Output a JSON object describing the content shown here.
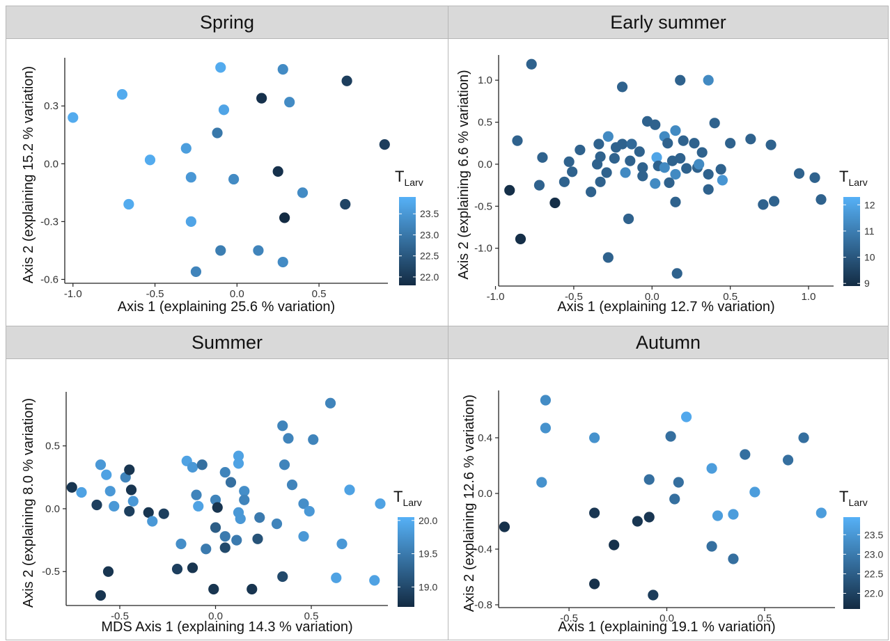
{
  "chart_data": [
    {
      "type": "scatter",
      "title": "Spring",
      "xlabel": "Axis 1 (explaining 25.6 % variation)",
      "ylabel": "Axis 2 (explaining 15.2 % variation)",
      "xlim": [
        -1.05,
        0.92
      ],
      "ylim": [
        -0.62,
        0.55
      ],
      "xticks": [
        -1.0,
        -0.5,
        0.0,
        0.5
      ],
      "yticks": [
        -0.6,
        -0.3,
        0.0,
        0.3
      ],
      "x_tick_labels": [
        "-1.0",
        "-0.5",
        "0.0",
        "0.5"
      ],
      "y_tick_labels": [
        "-0.6",
        "-0.3",
        "0.0",
        "0.3"
      ],
      "legend": {
        "title": "T",
        "title_sub": "Larv",
        "range": [
          21.8,
          23.9
        ],
        "ticks": [
          22.0,
          22.5,
          23.0,
          23.5
        ],
        "tick_labels": [
          "22.0",
          "22.5",
          "23.0",
          "23.5"
        ],
        "placement": "right"
      },
      "points": [
        {
          "x": -1.0,
          "y": 0.24,
          "t": 23.8
        },
        {
          "x": -0.7,
          "y": 0.36,
          "t": 23.8
        },
        {
          "x": -0.66,
          "y": -0.21,
          "t": 23.8
        },
        {
          "x": -0.53,
          "y": 0.02,
          "t": 23.8
        },
        {
          "x": -0.31,
          "y": 0.08,
          "t": 23.6
        },
        {
          "x": -0.28,
          "y": -0.07,
          "t": 23.5
        },
        {
          "x": -0.28,
          "y": -0.3,
          "t": 23.7
        },
        {
          "x": -0.25,
          "y": -0.56,
          "t": 23.2
        },
        {
          "x": -0.12,
          "y": 0.16,
          "t": 23.0
        },
        {
          "x": -0.1,
          "y": 0.5,
          "t": 23.8
        },
        {
          "x": -0.1,
          "y": -0.45,
          "t": 23.1
        },
        {
          "x": -0.08,
          "y": 0.28,
          "t": 23.7
        },
        {
          "x": -0.02,
          "y": -0.08,
          "t": 23.3
        },
        {
          "x": 0.13,
          "y": -0.45,
          "t": 23.2
        },
        {
          "x": 0.15,
          "y": 0.34,
          "t": 21.9
        },
        {
          "x": 0.25,
          "y": -0.04,
          "t": 21.9
        },
        {
          "x": 0.28,
          "y": 0.49,
          "t": 23.3
        },
        {
          "x": 0.28,
          "y": -0.51,
          "t": 23.3
        },
        {
          "x": 0.29,
          "y": -0.28,
          "t": 21.8
        },
        {
          "x": 0.32,
          "y": 0.32,
          "t": 23.3
        },
        {
          "x": 0.4,
          "y": -0.15,
          "t": 23.3
        },
        {
          "x": 0.67,
          "y": 0.43,
          "t": 22.1
        },
        {
          "x": 0.66,
          "y": -0.21,
          "t": 22.2
        },
        {
          "x": 0.9,
          "y": 0.1,
          "t": 22.1
        }
      ]
    },
    {
      "type": "scatter",
      "title": "Early summer",
      "xlabel": "Axis 1 (explaining 12.7 % variation)",
      "ylabel": "Axis 2 (explaining 6.6 % variation)",
      "xlim": [
        -0.98,
        1.16
      ],
      "ylim": [
        -1.45,
        1.3
      ],
      "xticks": [
        -1.0,
        -0.5,
        0.0,
        0.5,
        1.0
      ],
      "yticks": [
        -1.0,
        -0.5,
        0.0,
        0.5,
        1.0
      ],
      "x_tick_labels": [
        "-1.0",
        "-0.5",
        "0.0",
        "0.5",
        "1.0"
      ],
      "y_tick_labels": [
        "-1.0",
        "-0.5",
        "0.0",
        "0.5",
        "1.0"
      ],
      "legend": {
        "title": "T",
        "title_sub": "Larv",
        "range": [
          8.9,
          12.3
        ],
        "ticks": [
          9,
          10,
          11,
          12
        ],
        "tick_labels": [
          "9",
          "10",
          "11",
          "12"
        ],
        "placement": "right"
      },
      "points": [
        {
          "x": -0.77,
          "y": 1.19,
          "t": 10.3
        },
        {
          "x": -0.19,
          "y": 0.92,
          "t": 10.3
        },
        {
          "x": 0.18,
          "y": 1.0,
          "t": 10.3
        },
        {
          "x": 0.36,
          "y": 1.0,
          "t": 11.3
        },
        {
          "x": -0.86,
          "y": 0.28,
          "t": 10.3
        },
        {
          "x": -0.91,
          "y": -0.31,
          "t": 9.0
        },
        {
          "x": -0.84,
          "y": -0.89,
          "t": 9.0
        },
        {
          "x": -0.7,
          "y": 0.08,
          "t": 10.3
        },
        {
          "x": -0.72,
          "y": -0.25,
          "t": 10.3
        },
        {
          "x": -0.62,
          "y": -0.46,
          "t": 9.0
        },
        {
          "x": -0.56,
          "y": -0.21,
          "t": 10.3
        },
        {
          "x": -0.53,
          "y": 0.03,
          "t": 10.3
        },
        {
          "x": -0.51,
          "y": -0.09,
          "t": 10.3
        },
        {
          "x": -0.46,
          "y": 0.17,
          "t": 10.3
        },
        {
          "x": -0.39,
          "y": -0.33,
          "t": 10.3
        },
        {
          "x": -0.35,
          "y": 0.0,
          "t": 10.3
        },
        {
          "x": -0.34,
          "y": 0.24,
          "t": 10.3
        },
        {
          "x": -0.33,
          "y": -0.21,
          "t": 10.3
        },
        {
          "x": -0.33,
          "y": 0.09,
          "t": 10.3
        },
        {
          "x": -0.29,
          "y": -0.1,
          "t": 10.3
        },
        {
          "x": -0.28,
          "y": 0.33,
          "t": 11.3
        },
        {
          "x": -0.28,
          "y": -1.11,
          "t": 10.3
        },
        {
          "x": -0.24,
          "y": 0.07,
          "t": 10.3
        },
        {
          "x": -0.23,
          "y": 0.2,
          "t": 10.3
        },
        {
          "x": -0.19,
          "y": 0.24,
          "t": 10.3
        },
        {
          "x": -0.17,
          "y": -0.1,
          "t": 11.3
        },
        {
          "x": -0.15,
          "y": -0.65,
          "t": 10.3
        },
        {
          "x": -0.13,
          "y": 0.24,
          "t": 10.5
        },
        {
          "x": -0.14,
          "y": 0.04,
          "t": 10.3
        },
        {
          "x": -0.06,
          "y": -0.04,
          "t": 10.3
        },
        {
          "x": -0.08,
          "y": 0.15,
          "t": 10.3
        },
        {
          "x": -0.06,
          "y": -0.14,
          "t": 10.3
        },
        {
          "x": -0.03,
          "y": 0.51,
          "t": 10.3
        },
        {
          "x": 0.02,
          "y": 0.47,
          "t": 10.3
        },
        {
          "x": 0.02,
          "y": -0.23,
          "t": 11.3
        },
        {
          "x": 0.03,
          "y": 0.08,
          "t": 12.0
        },
        {
          "x": 0.04,
          "y": -0.02,
          "t": 10.3
        },
        {
          "x": 0.08,
          "y": 0.33,
          "t": 11.3
        },
        {
          "x": 0.08,
          "y": -0.04,
          "t": 11.3
        },
        {
          "x": 0.1,
          "y": 0.25,
          "t": 10.3
        },
        {
          "x": 0.11,
          "y": -0.22,
          "t": 10.3
        },
        {
          "x": 0.13,
          "y": 0.04,
          "t": 10.3
        },
        {
          "x": 0.15,
          "y": 0.4,
          "t": 11.3
        },
        {
          "x": 0.15,
          "y": -0.12,
          "t": 11.3
        },
        {
          "x": 0.15,
          "y": -0.45,
          "t": 10.3
        },
        {
          "x": 0.16,
          "y": -1.3,
          "t": 10.3
        },
        {
          "x": 0.18,
          "y": 0.07,
          "t": 10.3
        },
        {
          "x": 0.2,
          "y": 0.28,
          "t": 10.3
        },
        {
          "x": 0.22,
          "y": -0.05,
          "t": 10.3
        },
        {
          "x": 0.27,
          "y": 0.25,
          "t": 10.3
        },
        {
          "x": 0.29,
          "y": -0.04,
          "t": 10.3
        },
        {
          "x": 0.3,
          "y": 0.0,
          "t": 11.3
        },
        {
          "x": 0.32,
          "y": 0.14,
          "t": 10.3
        },
        {
          "x": 0.36,
          "y": -0.12,
          "t": 10.3
        },
        {
          "x": 0.36,
          "y": -0.3,
          "t": 10.3
        },
        {
          "x": 0.4,
          "y": 0.49,
          "t": 10.3
        },
        {
          "x": 0.44,
          "y": -0.06,
          "t": 10.3
        },
        {
          "x": 0.45,
          "y": -0.19,
          "t": 11.6
        },
        {
          "x": 0.5,
          "y": 0.25,
          "t": 10.3
        },
        {
          "x": 0.63,
          "y": 0.3,
          "t": 10.3
        },
        {
          "x": 0.71,
          "y": -0.48,
          "t": 10.3
        },
        {
          "x": 0.76,
          "y": 0.23,
          "t": 10.3
        },
        {
          "x": 0.78,
          "y": -0.44,
          "t": 10.3
        },
        {
          "x": 0.94,
          "y": -0.11,
          "t": 10.3
        },
        {
          "x": 1.04,
          "y": -0.16,
          "t": 10.3
        },
        {
          "x": 1.08,
          "y": -0.42,
          "t": 10.3
        }
      ]
    },
    {
      "type": "scatter",
      "title": "Summer",
      "xlabel": "MDS Axis 1 (explaining 14.3 % variation)",
      "ylabel": "Axis 2 (explaining 8.0 % variation)",
      "xlim": [
        -0.78,
        0.9
      ],
      "ylim": [
        -0.77,
        0.93
      ],
      "xticks": [
        -0.5,
        0.0,
        0.5
      ],
      "yticks": [
        -0.5,
        0.0,
        0.5
      ],
      "x_tick_labels": [
        "-0.5",
        "0.0",
        "0.5"
      ],
      "y_tick_labels": [
        "-0.5",
        "0.0",
        "0.5"
      ],
      "legend": {
        "title": "T",
        "title_sub": "Larv",
        "range": [
          18.7,
          20.05
        ],
        "ticks": [
          19.0,
          19.5,
          20.0
        ],
        "tick_labels": [
          "19.0",
          "19.5",
          "20.0"
        ],
        "placement": "right"
      },
      "points": [
        {
          "x": -0.75,
          "y": 0.17,
          "t": 18.8
        },
        {
          "x": -0.7,
          "y": 0.13,
          "t": 19.9
        },
        {
          "x": -0.62,
          "y": 0.03,
          "t": 18.9
        },
        {
          "x": -0.6,
          "y": 0.35,
          "t": 19.8
        },
        {
          "x": -0.57,
          "y": 0.27,
          "t": 19.9
        },
        {
          "x": -0.55,
          "y": 0.14,
          "t": 19.8
        },
        {
          "x": -0.53,
          "y": 0.02,
          "t": 19.8
        },
        {
          "x": -0.47,
          "y": 0.25,
          "t": 19.6
        },
        {
          "x": -0.45,
          "y": 0.31,
          "t": 18.8
        },
        {
          "x": -0.44,
          "y": 0.15,
          "t": 18.8
        },
        {
          "x": -0.43,
          "y": 0.06,
          "t": 19.8
        },
        {
          "x": -0.45,
          "y": -0.02,
          "t": 18.9
        },
        {
          "x": -0.35,
          "y": -0.03,
          "t": 18.8
        },
        {
          "x": -0.33,
          "y": -0.1,
          "t": 19.8
        },
        {
          "x": -0.27,
          "y": -0.04,
          "t": 18.9
        },
        {
          "x": -0.2,
          "y": -0.48,
          "t": 18.9
        },
        {
          "x": -0.18,
          "y": -0.28,
          "t": 19.7
        },
        {
          "x": -0.15,
          "y": 0.38,
          "t": 19.9
        },
        {
          "x": -0.12,
          "y": 0.33,
          "t": 19.8
        },
        {
          "x": -0.12,
          "y": -0.47,
          "t": 18.8
        },
        {
          "x": -0.1,
          "y": 0.11,
          "t": 19.6
        },
        {
          "x": -0.09,
          "y": 0.02,
          "t": 19.9
        },
        {
          "x": -0.07,
          "y": 0.35,
          "t": 19.4
        },
        {
          "x": -0.05,
          "y": -0.32,
          "t": 19.5
        },
        {
          "x": -0.01,
          "y": -0.64,
          "t": 18.8
        },
        {
          "x": 0.0,
          "y": -0.15,
          "t": 19.2
        },
        {
          "x": 0.0,
          "y": 0.07,
          "t": 19.6
        },
        {
          "x": 0.01,
          "y": 0.01,
          "t": 18.8
        },
        {
          "x": 0.05,
          "y": 0.29,
          "t": 19.6
        },
        {
          "x": 0.05,
          "y": -0.22,
          "t": 19.5
        },
        {
          "x": 0.05,
          "y": -0.31,
          "t": 19.0
        },
        {
          "x": 0.08,
          "y": 0.21,
          "t": 19.4
        },
        {
          "x": 0.11,
          "y": -0.25,
          "t": 19.5
        },
        {
          "x": 0.12,
          "y": 0.42,
          "t": 19.9
        },
        {
          "x": 0.12,
          "y": 0.36,
          "t": 19.9
        },
        {
          "x": 0.12,
          "y": -0.03,
          "t": 19.8
        },
        {
          "x": 0.13,
          "y": -0.08,
          "t": 19.8
        },
        {
          "x": 0.15,
          "y": 0.14,
          "t": 19.7
        },
        {
          "x": 0.15,
          "y": 0.07,
          "t": 19.6
        },
        {
          "x": 0.19,
          "y": -0.64,
          "t": 18.8
        },
        {
          "x": 0.22,
          "y": -0.24,
          "t": 19.1
        },
        {
          "x": 0.23,
          "y": -0.07,
          "t": 19.5
        },
        {
          "x": 0.32,
          "y": -0.12,
          "t": 19.6
        },
        {
          "x": 0.35,
          "y": 0.66,
          "t": 19.6
        },
        {
          "x": 0.36,
          "y": 0.35,
          "t": 19.6
        },
        {
          "x": 0.35,
          "y": -0.54,
          "t": 19.0
        },
        {
          "x": 0.38,
          "y": 0.56,
          "t": 19.6
        },
        {
          "x": 0.4,
          "y": 0.19,
          "t": 19.6
        },
        {
          "x": 0.46,
          "y": 0.04,
          "t": 19.7
        },
        {
          "x": 0.46,
          "y": -0.22,
          "t": 19.8
        },
        {
          "x": 0.49,
          "y": -0.02,
          "t": 19.8
        },
        {
          "x": 0.51,
          "y": 0.55,
          "t": 19.6
        },
        {
          "x": 0.6,
          "y": 0.84,
          "t": 19.6
        },
        {
          "x": 0.63,
          "y": -0.55,
          "t": 19.9
        },
        {
          "x": 0.66,
          "y": -0.28,
          "t": 19.8
        },
        {
          "x": 0.7,
          "y": 0.15,
          "t": 19.9
        },
        {
          "x": 0.83,
          "y": -0.57,
          "t": 19.9
        },
        {
          "x": 0.86,
          "y": 0.04,
          "t": 19.9
        },
        {
          "x": -0.6,
          "y": -0.69,
          "t": 18.8
        },
        {
          "x": -0.56,
          "y": -0.5,
          "t": 18.8
        }
      ]
    },
    {
      "type": "scatter",
      "title": "Autumn",
      "xlabel": "Axis 1 (explaining 19.1 % variation)",
      "ylabel": "Axis 2 (explaining 12.6 % variation)",
      "xlim": [
        -0.86,
        0.86
      ],
      "ylim": [
        -0.82,
        0.74
      ],
      "xticks": [
        -0.5,
        0.0,
        0.5
      ],
      "yticks": [
        -0.8,
        -0.4,
        0.0,
        0.4
      ],
      "x_tick_labels": [
        "-0.5",
        "0.0",
        "0.5"
      ],
      "y_tick_labels": [
        "-0.8",
        "-0.4",
        "0.0",
        "0.4"
      ],
      "legend": {
        "title": "T",
        "title_sub": "Larv",
        "range": [
          21.6,
          23.95
        ],
        "ticks": [
          22.0,
          22.5,
          23.0,
          23.5
        ],
        "tick_labels": [
          "22.0",
          "22.5",
          "23.0",
          "23.5"
        ],
        "placement": "right"
      },
      "points": [
        {
          "x": -0.83,
          "y": -0.24,
          "t": 21.7
        },
        {
          "x": -0.62,
          "y": 0.67,
          "t": 23.3
        },
        {
          "x": -0.62,
          "y": 0.47,
          "t": 23.4
        },
        {
          "x": -0.64,
          "y": 0.08,
          "t": 23.4
        },
        {
          "x": -0.37,
          "y": 0.4,
          "t": 23.4
        },
        {
          "x": -0.37,
          "y": -0.14,
          "t": 21.8
        },
        {
          "x": -0.37,
          "y": -0.65,
          "t": 21.7
        },
        {
          "x": -0.27,
          "y": -0.37,
          "t": 21.7
        },
        {
          "x": -0.15,
          "y": -0.2,
          "t": 21.8
        },
        {
          "x": -0.09,
          "y": 0.1,
          "t": 22.8
        },
        {
          "x": -0.09,
          "y": -0.17,
          "t": 21.8
        },
        {
          "x": -0.07,
          "y": -0.73,
          "t": 21.9
        },
        {
          "x": 0.02,
          "y": 0.41,
          "t": 22.8
        },
        {
          "x": 0.04,
          "y": -0.04,
          "t": 22.8
        },
        {
          "x": 0.06,
          "y": 0.08,
          "t": 22.8
        },
        {
          "x": 0.1,
          "y": 0.55,
          "t": 23.8
        },
        {
          "x": 0.23,
          "y": 0.18,
          "t": 23.6
        },
        {
          "x": 0.23,
          "y": -0.38,
          "t": 22.8
        },
        {
          "x": 0.26,
          "y": -0.16,
          "t": 23.6
        },
        {
          "x": 0.34,
          "y": -0.15,
          "t": 23.6
        },
        {
          "x": 0.34,
          "y": -0.47,
          "t": 22.8
        },
        {
          "x": 0.4,
          "y": 0.28,
          "t": 22.8
        },
        {
          "x": 0.45,
          "y": 0.01,
          "t": 23.6
        },
        {
          "x": 0.62,
          "y": 0.24,
          "t": 22.8
        },
        {
          "x": 0.7,
          "y": 0.4,
          "t": 22.8
        },
        {
          "x": 0.79,
          "y": -0.14,
          "t": 23.6
        }
      ]
    }
  ],
  "colors": {
    "low": "#132b43",
    "high": "#56b1f7",
    "axis": "#222222",
    "grid_border": "#b7b7b7",
    "header_bg": "#d9d9d9"
  }
}
